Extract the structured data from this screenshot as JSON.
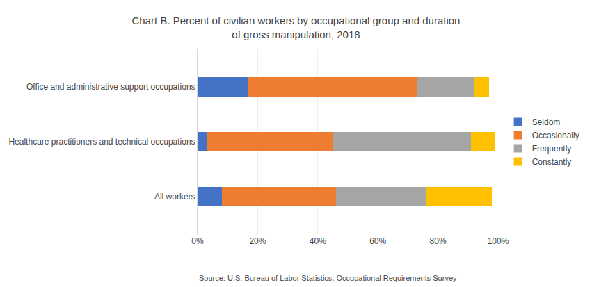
{
  "chart_data": {
    "type": "bar",
    "orientation": "horizontal",
    "stacked": true,
    "title": "Chart B. Percent of civilian workers by occupational group and duration\nof gross manipulation, 2018",
    "categories": [
      "All workers",
      "Healthcare practitioners and technical occupations",
      "Office and administrative support occupations"
    ],
    "series": [
      {
        "name": "Seldom",
        "color": "#4472C4",
        "values": [
          8,
          3,
          17
        ]
      },
      {
        "name": "Occasionally",
        "color": "#ED7D31",
        "values": [
          38,
          42,
          56
        ]
      },
      {
        "name": "Frequently",
        "color": "#A5A5A5",
        "values": [
          30,
          46,
          19
        ]
      },
      {
        "name": "Constantly",
        "color": "#FFC000",
        "values": [
          22,
          8,
          5
        ]
      }
    ],
    "xlim": [
      0,
      100
    ],
    "xticks": [
      {
        "value": 0,
        "label": "0%"
      },
      {
        "value": 20,
        "label": "20%"
      },
      {
        "value": 40,
        "label": "40%"
      },
      {
        "value": 60,
        "label": "60%"
      },
      {
        "value": 80,
        "label": "80%"
      },
      {
        "value": 100,
        "label": "100%"
      }
    ],
    "grid": true,
    "legend": "right",
    "annotations": [
      "Source: U.S. Bureau of Labor Statistics, Occupational Requirements Survey"
    ]
  }
}
